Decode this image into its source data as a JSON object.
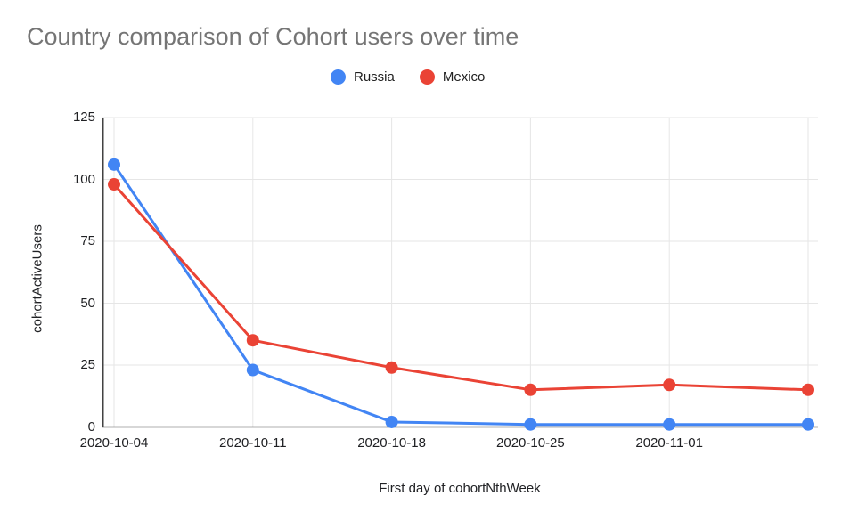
{
  "title": "Country comparison of Cohort users over time",
  "colors": {
    "background": "#ffffff",
    "title_text": "#757575",
    "axis_text": "#202124",
    "gridline": "#e6e6e6",
    "y_axis_line": "#424242",
    "x_axis_line": "#616161",
    "series_russia": "#4285F4",
    "series_mexico": "#EA4335"
  },
  "legend": {
    "position": "top-center",
    "items": [
      {
        "label": "Russia",
        "color": "#4285F4"
      },
      {
        "label": "Mexico",
        "color": "#EA4335"
      }
    ]
  },
  "chart_data": {
    "type": "line",
    "title": "Country comparison of Cohort users over time",
    "xlabel": "First day of cohortNthWeek",
    "ylabel": "cohortActiveUsers",
    "categories": [
      "2020-10-04",
      "2020-10-11",
      "2020-10-18",
      "2020-10-25",
      "2020-11-01",
      ""
    ],
    "series": [
      {
        "name": "Russia",
        "color": "#4285F4",
        "values": [
          106,
          23,
          2,
          1,
          1,
          1
        ]
      },
      {
        "name": "Mexico",
        "color": "#EA4335",
        "values": [
          98,
          35,
          24,
          15,
          17,
          15
        ]
      }
    ],
    "ylim": [
      0,
      125
    ],
    "yticks": [
      0,
      25,
      50,
      75,
      100,
      125
    ],
    "grid": true,
    "legend_position": "top",
    "marker": "circle",
    "marker_radius": 7,
    "line_width": 3
  }
}
